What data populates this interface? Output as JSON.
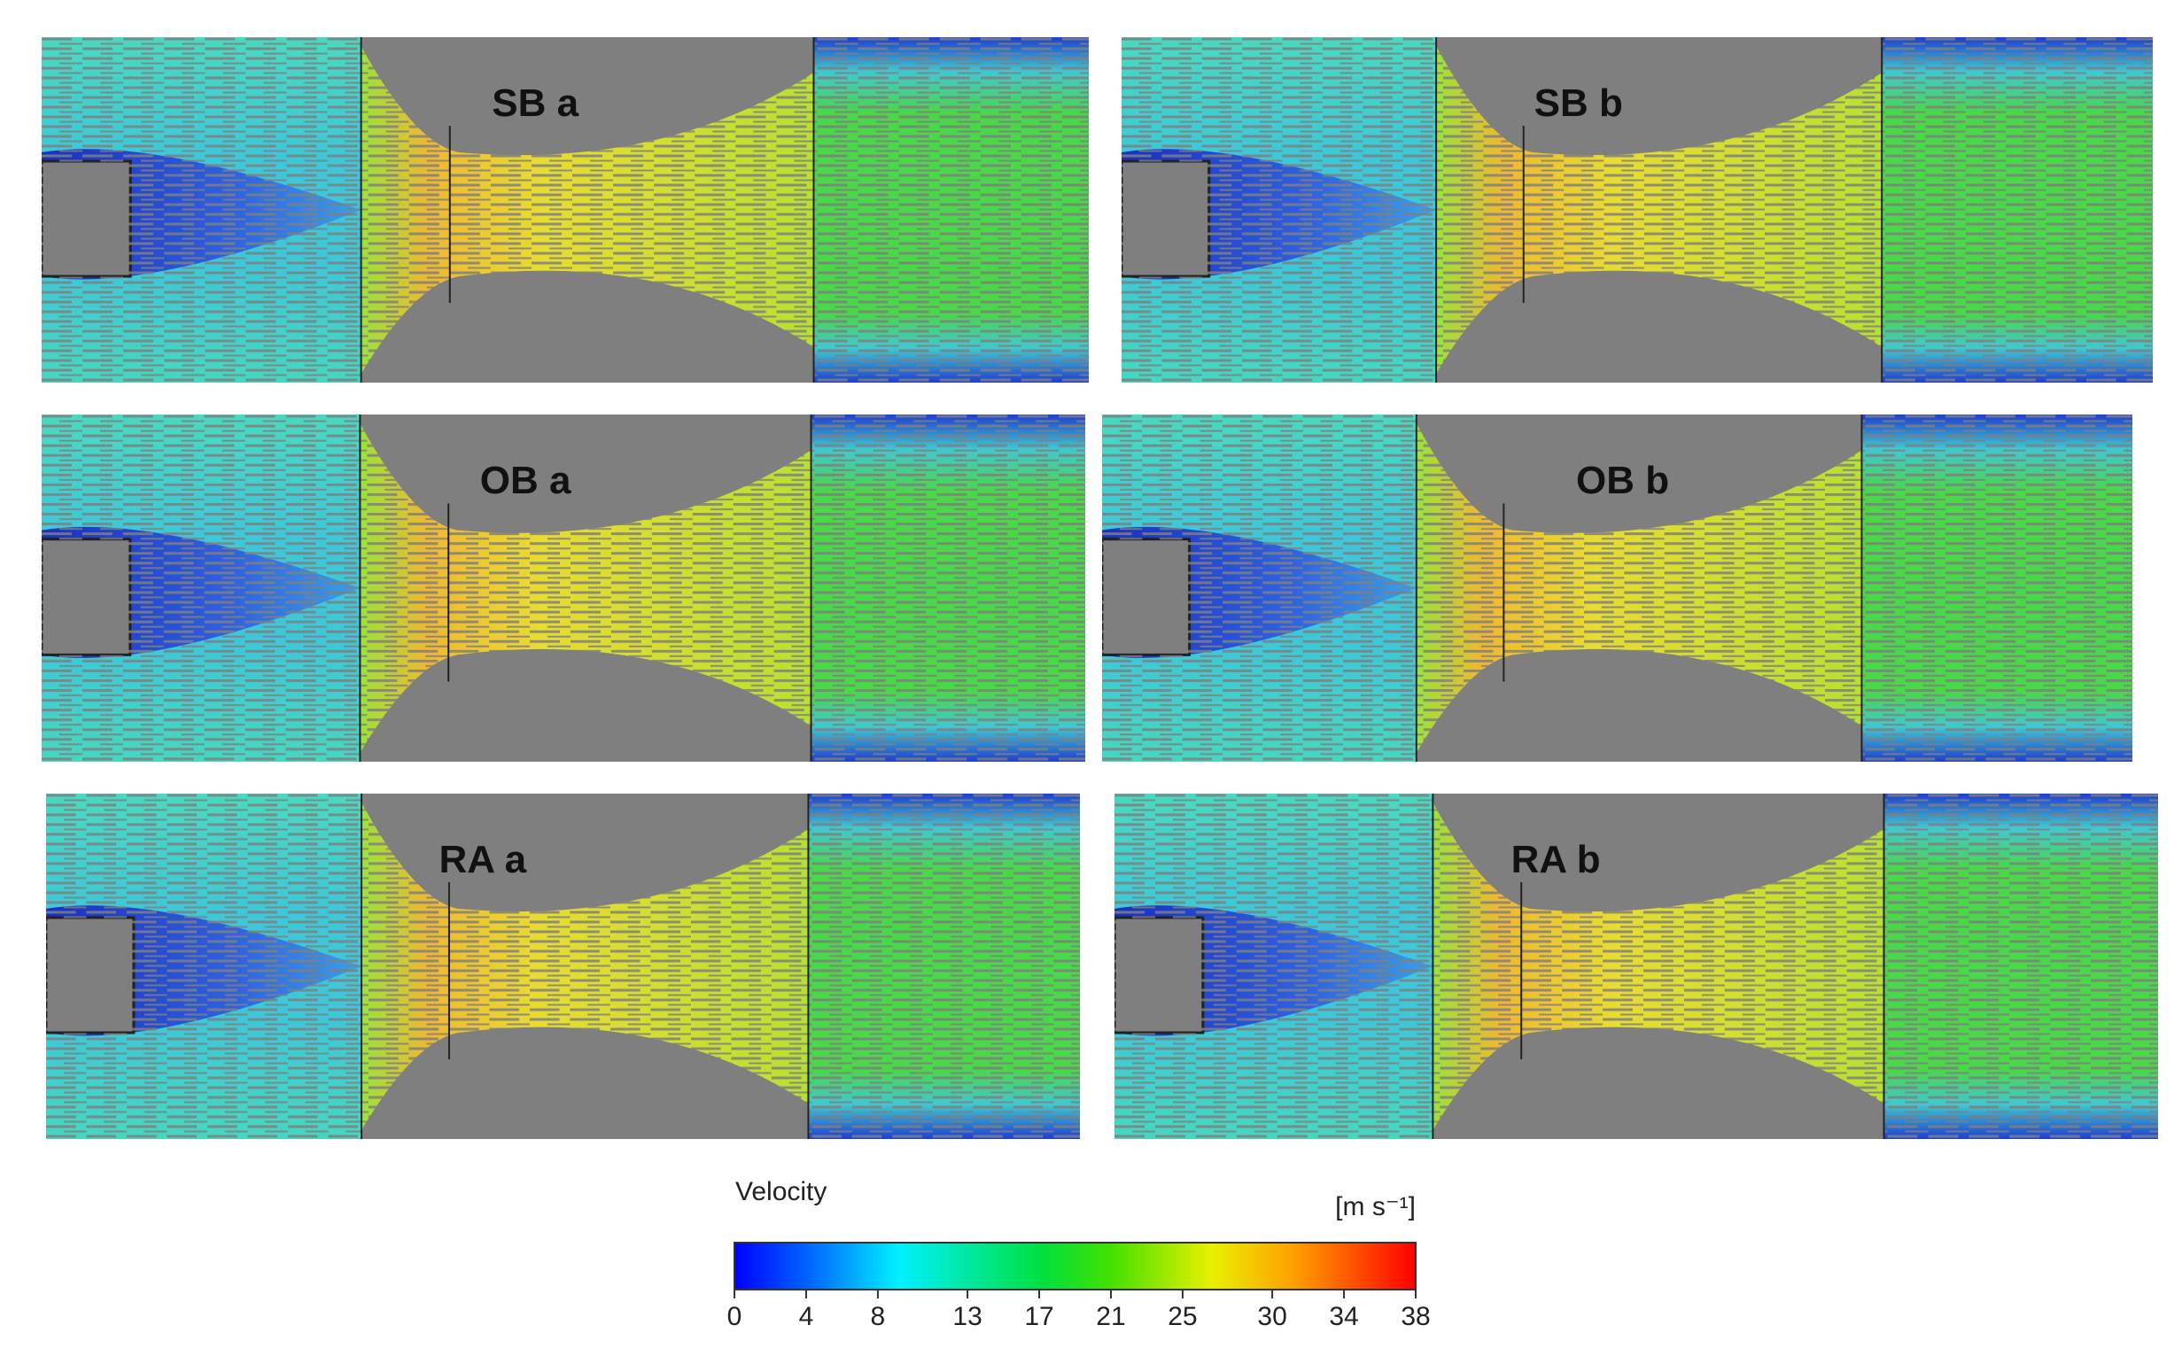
{
  "panels": [
    {
      "label": "SB a"
    },
    {
      "label": "SB b"
    },
    {
      "label": "OB a"
    },
    {
      "label": "OB b"
    },
    {
      "label": "RA a"
    },
    {
      "label": "RA b"
    }
  ],
  "colorbar": {
    "title": "Velocity",
    "unit": "[m s⁻¹]",
    "range": [
      0,
      38
    ],
    "ticks": [
      0,
      4,
      8,
      13,
      17,
      21,
      25,
      30,
      34,
      38
    ]
  }
}
